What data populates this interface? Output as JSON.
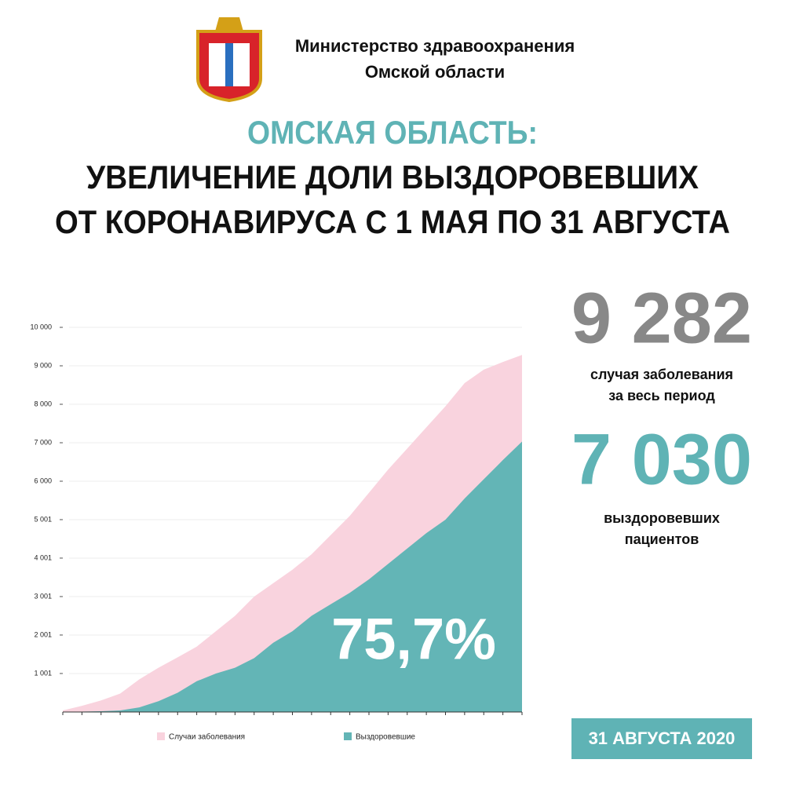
{
  "header": {
    "org_lines": [
      "Министерство здравоохранения",
      "Омской области"
    ]
  },
  "title_lines": [
    "ОМСКАЯ ОБЛАСТЬ:",
    "УВЕЛИЧЕНИЕ ДОЛИ ВЫЗДОРОВЕВШИХ",
    "ОТ КОРОНАВИРУСА С 1 МАЯ ПО 31 АВГУСТА"
  ],
  "stats": [
    {
      "value": "9 282",
      "lines": [
        "случая заболевания",
        "за весь период"
      ]
    },
    {
      "value": "7 030",
      "lines": [
        "выздоровевших",
        "пациентов"
      ]
    }
  ],
  "date": "31 АВГУСТА 2020",
  "chart_data": {
    "type": "area",
    "categories": [
      null,
      null,
      null,
      null,
      null,
      null,
      null,
      null,
      null,
      null,
      null,
      null,
      null,
      null,
      null,
      null,
      null,
      null,
      null,
      null,
      null,
      null,
      null,
      null,
      null
    ],
    "series": [
      {
        "name": "Случаи заболевания",
        "color": "#f9d3de",
        "values": [
          40,
          160,
          300,
          480,
          850,
          1150,
          1420,
          1700,
          2100,
          2500,
          3000,
          3350,
          3700,
          4100,
          4600,
          5100,
          5700,
          6300,
          6850,
          7400,
          7950,
          8550,
          8900,
          9100,
          9282
        ]
      },
      {
        "name": "Выздоровевшие",
        "color": "#63b5b6",
        "values": [
          0,
          10,
          20,
          40,
          120,
          280,
          500,
          800,
          1000,
          1150,
          1400,
          1800,
          2100,
          2500,
          2800,
          3100,
          3450,
          3850,
          4250,
          4650,
          5000,
          5550,
          6050,
          6550,
          7030
        ]
      }
    ],
    "ylim": [
      0,
      10000
    ],
    "yticks": [
      {
        "value": 1001,
        "label": "1 001"
      },
      {
        "value": 2001,
        "label": "2 001"
      },
      {
        "value": 3001,
        "label": "3 001"
      },
      {
        "value": 4001,
        "label": "4 001"
      },
      {
        "value": 5001,
        "label": "5 001"
      },
      {
        "value": 6000,
        "label": "6 000"
      },
      {
        "value": 7000,
        "label": "7 000"
      },
      {
        "value": 8000,
        "label": "8 000"
      },
      {
        "value": 9000,
        "label": "9 000"
      },
      {
        "value": 10000,
        "label": "10 000"
      }
    ],
    "grid": true,
    "annotation": "75,7%"
  }
}
